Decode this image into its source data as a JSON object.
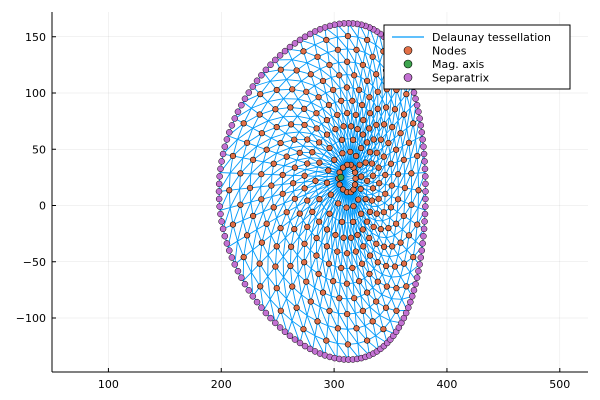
{
  "chart_data": {
    "type": "scatter",
    "title": "",
    "xlabel": "",
    "ylabel": "",
    "xlim": [
      50,
      525
    ],
    "ylim": [
      -148,
      172
    ],
    "xticks": [
      100,
      200,
      300,
      400,
      500
    ],
    "yticks": [
      -100,
      -50,
      0,
      50,
      100,
      150
    ],
    "grid": true,
    "legend_position": "top-right",
    "series": [
      {
        "name": "Delaunay tessellation",
        "kind": "line",
        "color": "#009AFA"
      },
      {
        "name": "Nodes",
        "kind": "scatter",
        "color": "#E26F46"
      },
      {
        "name": "Mag. axis",
        "kind": "scatter",
        "color": "#3EA44E",
        "x": [
          306
        ],
        "y": [
          25
        ]
      },
      {
        "name": "Separatrix",
        "kind": "scatter",
        "color": "#C371D2"
      }
    ],
    "separatrix_shape": {
      "x_min": 198,
      "x_max": 381,
      "y_min": -137,
      "y_max": 162,
      "x_at_top": 272,
      "x_at_bottom": 260
    }
  }
}
